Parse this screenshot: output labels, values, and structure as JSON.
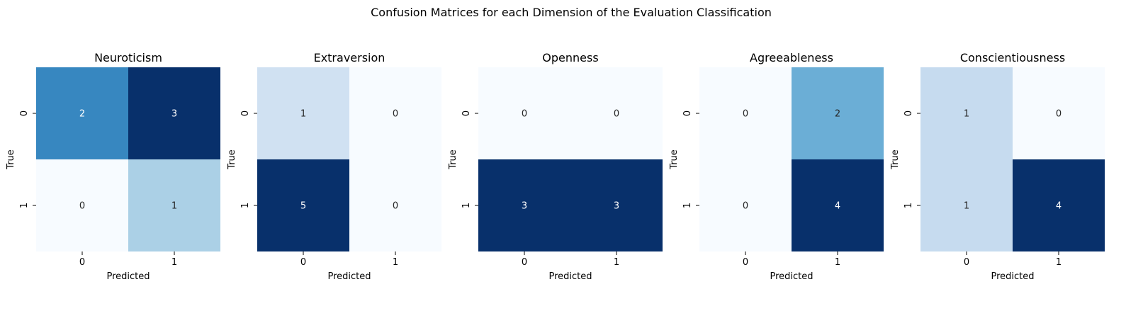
{
  "figure": {
    "suptitle": "Confusion Matrices for each Dimension of the Evaluation Classification"
  },
  "chart_data": [
    {
      "type": "heatmap",
      "title": "Neuroticism",
      "xlabel": "Predicted",
      "ylabel": "True",
      "x_ticks": [
        "0",
        "1"
      ],
      "y_ticks": [
        "0",
        "1"
      ],
      "matrix": [
        [
          2,
          3
        ],
        [
          0,
          1
        ]
      ],
      "colormap": "Blues"
    },
    {
      "type": "heatmap",
      "title": "Extraversion",
      "xlabel": "Predicted",
      "ylabel": "True",
      "x_ticks": [
        "0",
        "1"
      ],
      "y_ticks": [
        "0",
        "1"
      ],
      "matrix": [
        [
          1,
          0
        ],
        [
          5,
          0
        ]
      ],
      "colormap": "Blues"
    },
    {
      "type": "heatmap",
      "title": "Openness",
      "xlabel": "Predicted",
      "ylabel": "True",
      "x_ticks": [
        "0",
        "1"
      ],
      "y_ticks": [
        "0",
        "1"
      ],
      "matrix": [
        [
          0,
          0
        ],
        [
          3,
          3
        ]
      ],
      "colormap": "Blues"
    },
    {
      "type": "heatmap",
      "title": "Agreeableness",
      "xlabel": "Predicted",
      "ylabel": "True",
      "x_ticks": [
        "0",
        "1"
      ],
      "y_ticks": [
        "0",
        "1"
      ],
      "matrix": [
        [
          0,
          2
        ],
        [
          0,
          4
        ]
      ],
      "colormap": "Blues"
    },
    {
      "type": "heatmap",
      "title": "Conscientiousness",
      "xlabel": "Predicted",
      "ylabel": "True",
      "x_ticks": [
        "0",
        "1"
      ],
      "y_ticks": [
        "0",
        "1"
      ],
      "matrix": [
        [
          1,
          0
        ],
        [
          1,
          4
        ]
      ],
      "colormap": "Blues"
    }
  ]
}
